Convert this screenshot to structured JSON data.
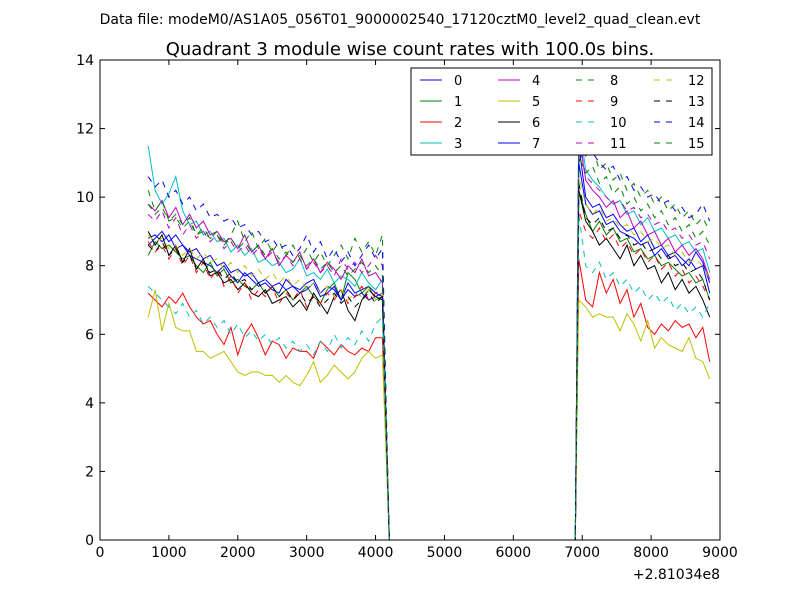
{
  "chart_data": {
    "type": "line",
    "suptitle": "Data file: modeM0/AS1A05_056T01_9000002540_17120cztM0_level2_quad_clean.evt",
    "title": "Quadrant 3 module wise count rates with 100.0s bins.",
    "xlabel": "",
    "ylabel": "",
    "x_offset_label": "+2.81034e8",
    "xlim": [
      0,
      9000
    ],
    "ylim": [
      0,
      14
    ],
    "x_ticks": [
      0,
      1000,
      2000,
      3000,
      4000,
      5000,
      6000,
      7000,
      8000,
      9000
    ],
    "y_ticks": [
      0,
      2,
      4,
      6,
      8,
      10,
      12,
      14
    ],
    "x_tick_labels": [
      "0",
      "1000",
      "2000",
      "3000",
      "4000",
      "5000",
      "6000",
      "7000",
      "8000",
      "9000"
    ],
    "y_tick_labels": [
      "0",
      "2",
      "4",
      "6",
      "8",
      "10",
      "12",
      "14"
    ],
    "legend_position": "top-right",
    "x_seg1_start": 700,
    "x_seg2_start": 6950,
    "bin": 100,
    "series": [
      {
        "name": "0",
        "color": "#0000ff",
        "dash": "solid",
        "seg1": [
          8.8,
          8.9,
          8.7,
          8.9,
          8.5,
          8.6,
          8.3,
          8.2,
          8.1,
          8.0,
          7.8,
          8.0,
          7.7,
          7.5,
          7.8,
          7.6,
          7.4,
          7.5,
          7.3,
          7.2,
          7.6,
          7.4,
          7.3,
          7.5,
          7.6,
          7.2,
          7.4,
          7.3,
          7.0,
          7.5,
          7.2,
          7.3,
          7.4,
          7.2,
          7.1
        ],
        "seg2": [
          11.5,
          10.0,
          9.7,
          9.8,
          9.4,
          9.5,
          9.2,
          9.0,
          9.1,
          8.7,
          8.9,
          8.5,
          8.6,
          8.3,
          8.4,
          8.2,
          8.0,
          8.4,
          8.1,
          7.5
        ]
      },
      {
        "name": "1",
        "color": "#008000",
        "dash": "solid",
        "seg1": [
          8.3,
          8.7,
          8.5,
          8.6,
          8.4,
          8.2,
          8.3,
          8.0,
          7.8,
          8.1,
          7.7,
          7.9,
          7.5,
          7.6,
          7.4,
          7.3,
          7.5,
          7.2,
          7.4,
          7.1,
          7.3,
          7.0,
          7.2,
          7.4,
          7.1,
          6.9,
          7.3,
          7.5,
          7.0,
          7.8,
          7.6,
          7.2,
          7.4,
          7.0,
          7.1
        ],
        "seg2": [
          10.2,
          9.5,
          9.0,
          9.3,
          8.9,
          9.1,
          8.7,
          8.8,
          8.4,
          8.5,
          8.2,
          8.3,
          8.0,
          8.1,
          7.9,
          7.7,
          7.8,
          7.5,
          7.6,
          7.0
        ]
      },
      {
        "name": "2",
        "color": "#ff0000",
        "dash": "solid",
        "seg1": [
          7.2,
          7.0,
          6.8,
          7.1,
          6.9,
          7.2,
          6.8,
          6.5,
          6.3,
          6.4,
          6.0,
          5.7,
          6.2,
          5.4,
          6.0,
          6.3,
          5.9,
          5.4,
          5.8,
          5.7,
          5.3,
          5.6,
          5.5,
          5.5,
          5.3,
          5.8,
          5.6,
          5.4,
          5.7,
          5.5,
          5.4,
          5.6,
          5.5,
          5.9,
          5.9
        ],
        "seg2": [
          8.2,
          7.0,
          6.8,
          7.8,
          7.2,
          7.6,
          6.9,
          7.3,
          6.5,
          6.9,
          6.2,
          6.0,
          6.3,
          6.1,
          6.4,
          6.2,
          6.3,
          5.9,
          6.2,
          5.2
        ]
      },
      {
        "name": "3",
        "color": "#00bfbf",
        "dash": "solid",
        "seg1": [
          11.5,
          10.2,
          9.8,
          10.1,
          10.6,
          9.6,
          9.2,
          9.3,
          8.9,
          9.0,
          8.7,
          8.8,
          8.4,
          8.6,
          8.3,
          8.5,
          8.1,
          8.2,
          8.0,
          8.1,
          7.8,
          7.9,
          8.2,
          7.7,
          7.8,
          7.6,
          7.9,
          7.5,
          7.7,
          7.6,
          7.4,
          7.8,
          7.5,
          7.3,
          7.6
        ],
        "seg2": [
          12.2,
          10.8,
          10.5,
          10.3,
          10.0,
          9.8,
          9.9,
          9.5,
          9.6,
          9.2,
          9.4,
          9.0,
          9.1,
          8.8,
          8.9,
          8.6,
          8.7,
          8.4,
          8.5,
          7.8
        ]
      },
      {
        "name": "4",
        "color": "#bf00bf",
        "dash": "solid",
        "seg1": [
          9.8,
          9.6,
          9.9,
          9.4,
          9.7,
          9.2,
          9.5,
          9.1,
          9.3,
          8.9,
          9.0,
          8.7,
          8.8,
          8.5,
          8.9,
          8.4,
          8.6,
          8.2,
          8.5,
          8.0,
          8.3,
          8.1,
          8.4,
          7.9,
          8.2,
          7.8,
          8.1,
          7.9,
          7.6,
          8.0,
          7.8,
          8.2,
          7.7,
          7.8,
          7.5
        ],
        "seg2": [
          11.8,
          10.5,
          10.2,
          10.0,
          9.7,
          9.9,
          9.4,
          9.6,
          9.1,
          9.3,
          8.9,
          9.0,
          8.6,
          8.8,
          8.4,
          8.6,
          8.3,
          8.5,
          8.2,
          7.6
        ]
      },
      {
        "name": "5",
        "color": "#bfbf00",
        "dash": "solid",
        "seg1": [
          6.5,
          7.3,
          6.1,
          6.9,
          6.2,
          6.1,
          6.1,
          5.5,
          5.5,
          5.3,
          5.4,
          5.5,
          5.2,
          4.9,
          4.8,
          4.9,
          4.9,
          4.8,
          4.8,
          4.6,
          4.8,
          4.6,
          4.5,
          4.8,
          5.2,
          4.6,
          4.8,
          5.1,
          4.9,
          4.7,
          4.9,
          5.3,
          5.5,
          5.3,
          5.4
        ],
        "seg2": [
          7.0,
          6.8,
          6.5,
          6.6,
          6.5,
          6.5,
          6.1,
          6.6,
          6.3,
          5.8,
          6.4,
          5.6,
          5.9,
          5.7,
          5.6,
          5.5,
          5.9,
          5.3,
          5.2,
          4.7
        ]
      },
      {
        "name": "6",
        "color": "#000000",
        "dash": "solid",
        "seg1": [
          9.0,
          8.6,
          8.9,
          8.3,
          8.6,
          8.1,
          8.5,
          7.9,
          8.2,
          7.7,
          7.8,
          7.5,
          7.6,
          7.3,
          7.5,
          7.2,
          7.1,
          7.3,
          6.9,
          7.0,
          7.1,
          6.8,
          7.0,
          6.7,
          7.2,
          6.9,
          6.6,
          7.1,
          7.3,
          6.7,
          6.4,
          7.0,
          7.3,
          7.1,
          7.0
        ],
        "seg2": [
          10.2,
          9.3,
          9.0,
          8.6,
          8.8,
          8.5,
          8.2,
          8.6,
          8.0,
          8.3,
          7.9,
          8.0,
          7.5,
          7.8,
          7.3,
          7.6,
          7.2,
          7.4,
          7.0,
          6.5
        ]
      },
      {
        "name": "7",
        "color": "#0000ff",
        "dash": "solid",
        "seg1": [
          8.6,
          8.8,
          9.0,
          8.7,
          8.9,
          8.6,
          8.4,
          8.5,
          8.2,
          8.3,
          8.0,
          8.1,
          7.8,
          7.9,
          7.7,
          7.8,
          7.5,
          7.6,
          7.4,
          7.5,
          7.3,
          7.4,
          7.2,
          7.3,
          7.5,
          7.1,
          7.2,
          7.4,
          7.0,
          7.3,
          7.1,
          7.2,
          7.0,
          7.1,
          7.2
        ],
        "seg2": [
          11.0,
          9.8,
          9.5,
          9.6,
          9.2,
          9.3,
          9.0,
          8.9,
          8.8,
          8.6,
          8.7,
          8.3,
          8.5,
          8.2,
          8.3,
          8.0,
          8.2,
          7.9,
          8.0,
          7.2
        ]
      },
      {
        "name": "8",
        "color": "#008000",
        "dash": "dashed",
        "seg1": [
          10.2,
          9.6,
          9.9,
          9.3,
          9.5,
          9.2,
          9.4,
          8.9,
          9.1,
          8.8,
          9.0,
          8.6,
          8.9,
          9.3,
          8.7,
          9.0,
          8.5,
          8.8,
          8.4,
          8.7,
          8.3,
          8.6,
          8.2,
          8.5,
          8.1,
          8.4,
          8.0,
          8.3,
          8.6,
          8.2,
          8.8,
          8.4,
          8.7,
          8.3,
          8.9
        ],
        "seg2": [
          12.0,
          11.2,
          11.4,
          10.8,
          11.0,
          10.5,
          10.7,
          10.2,
          10.4,
          10.0,
          10.2,
          9.8,
          10.0,
          9.6,
          9.8,
          9.4,
          9.6,
          9.2,
          9.4,
          9.0
        ]
      },
      {
        "name": "9",
        "color": "#ff0000",
        "dash": "dashed",
        "seg1": [
          8.7,
          8.4,
          8.6,
          8.2,
          8.5,
          8.0,
          8.3,
          7.8,
          8.1,
          7.6,
          7.9,
          7.4,
          7.7,
          7.2,
          7.5,
          7.0,
          7.3,
          7.1,
          7.4,
          6.9,
          7.2,
          7.0,
          7.3,
          6.8,
          7.1,
          6.9,
          7.2,
          7.0,
          7.3,
          6.9,
          7.1,
          7.4,
          7.0,
          7.2,
          7.3
        ],
        "seg2": [
          9.6,
          9.0,
          8.8,
          9.1,
          8.7,
          8.9,
          8.5,
          8.7,
          8.3,
          8.5,
          8.1,
          8.3,
          7.9,
          8.1,
          7.7,
          7.9,
          7.5,
          7.7,
          7.4,
          7.0
        ]
      },
      {
        "name": "10",
        "color": "#00bfbf",
        "dash": "dashed",
        "seg1": [
          7.4,
          7.2,
          7.0,
          6.8,
          6.6,
          6.9,
          6.5,
          6.7,
          6.3,
          6.5,
          6.2,
          6.4,
          6.0,
          6.3,
          5.9,
          6.1,
          5.8,
          6.0,
          5.7,
          5.9,
          5.6,
          5.8,
          5.5,
          5.7,
          5.4,
          5.8,
          5.5,
          6.0,
          5.6,
          5.9,
          5.7,
          6.1,
          5.8,
          6.3,
          6.5
        ],
        "seg2": [
          9.5,
          8.0,
          7.8,
          8.1,
          7.6,
          7.8,
          7.4,
          7.6,
          7.2,
          7.4,
          7.0,
          7.2,
          6.9,
          7.1,
          6.7,
          6.9,
          6.6,
          6.8,
          6.5,
          6.9
        ]
      },
      {
        "name": "11",
        "color": "#bf00bf",
        "dash": "dashed",
        "seg1": [
          9.5,
          9.3,
          9.6,
          9.1,
          9.4,
          8.9,
          9.2,
          8.8,
          9.0,
          8.7,
          8.9,
          8.5,
          8.7,
          8.4,
          8.6,
          8.3,
          8.5,
          8.2,
          8.4,
          8.1,
          8.3,
          8.0,
          8.2,
          7.9,
          8.1,
          7.8,
          8.0,
          7.7,
          8.2,
          7.9,
          8.1,
          7.8,
          8.0,
          8.3,
          8.0
        ],
        "seg2": [
          11.8,
          10.6,
          10.4,
          10.2,
          10.0,
          9.8,
          9.9,
          9.6,
          9.7,
          9.4,
          9.5,
          9.2,
          9.3,
          9.0,
          9.1,
          8.8,
          8.9,
          8.6,
          8.7,
          8.2
        ]
      },
      {
        "name": "12",
        "color": "#bfbf00",
        "dash": "dashed",
        "seg1": [
          8.9,
          8.7,
          8.8,
          8.5,
          8.6,
          8.3,
          8.5,
          8.2,
          8.4,
          8.1,
          8.2,
          7.9,
          8.1,
          7.8,
          8.0,
          7.7,
          7.9,
          7.6,
          7.8,
          7.5,
          7.7,
          7.4,
          7.6,
          7.3,
          7.5,
          7.2,
          7.4,
          7.1,
          7.3,
          7.0,
          7.2,
          7.1,
          7.3,
          7.0,
          7.2
        ],
        "seg2": [
          10.6,
          9.8,
          9.5,
          9.7,
          9.3,
          9.4,
          9.1,
          9.2,
          8.9,
          9.0,
          8.7,
          8.8,
          8.5,
          8.6,
          8.3,
          8.4,
          8.1,
          8.2,
          8.0,
          7.6
        ]
      },
      {
        "name": "13",
        "color": "#000000",
        "dash": "dashed",
        "seg1": [
          8.6,
          8.4,
          8.7,
          8.3,
          8.5,
          8.1,
          8.3,
          7.9,
          8.1,
          7.8,
          7.9,
          7.6,
          7.8,
          7.5,
          7.6,
          7.3,
          7.5,
          7.2,
          7.4,
          7.1,
          7.3,
          7.0,
          7.2,
          6.9,
          7.1,
          6.8,
          7.0,
          7.2,
          6.9,
          7.1,
          6.8,
          7.0,
          7.2,
          6.9,
          7.1
        ],
        "seg2": [
          10.4,
          9.4,
          9.2,
          9.4,
          9.0,
          9.1,
          8.8,
          8.9,
          8.6,
          8.7,
          8.4,
          8.5,
          8.2,
          8.3,
          8.0,
          8.1,
          7.8,
          7.9,
          7.6,
          7.0
        ]
      },
      {
        "name": "14",
        "color": "#0000ff",
        "dash": "dashed",
        "seg1": [
          10.6,
          10.3,
          10.5,
          10.0,
          10.2,
          9.8,
          10.0,
          9.6,
          9.8,
          9.4,
          9.5,
          9.3,
          9.4,
          9.1,
          9.2,
          8.9,
          9.0,
          8.7,
          8.8,
          8.5,
          8.6,
          8.3,
          8.5,
          8.9,
          8.4,
          8.7,
          8.2,
          8.5,
          8.1,
          8.4,
          8.0,
          8.3,
          8.6,
          8.2,
          8.5
        ],
        "seg2": [
          11.0,
          11.6,
          11.3,
          11.0,
          10.8,
          10.9,
          10.5,
          10.6,
          10.2,
          10.3,
          10.0,
          10.1,
          9.8,
          9.9,
          9.6,
          9.7,
          9.4,
          9.5,
          9.8,
          9.3
        ]
      },
      {
        "name": "15",
        "color": "#008000",
        "dash": "dashed",
        "seg1": [
          9.8,
          9.5,
          9.7,
          9.3,
          9.4,
          9.1,
          9.3,
          8.9,
          9.0,
          8.8,
          8.9,
          8.6,
          8.8,
          8.5,
          8.7,
          8.4,
          8.6,
          8.3,
          8.5,
          8.2,
          8.4,
          8.1,
          8.3,
          8.0,
          8.2,
          7.9,
          8.1,
          7.8,
          8.0,
          7.7,
          7.9,
          8.1,
          7.8,
          8.0,
          7.7
        ],
        "seg2": [
          11.2,
          10.7,
          10.9,
          10.4,
          10.6,
          10.1,
          10.3,
          9.8,
          10.0,
          9.6,
          9.8,
          9.4,
          9.6,
          9.2,
          9.4,
          9.0,
          9.2,
          8.8,
          9.0,
          8.6
        ]
      }
    ]
  }
}
